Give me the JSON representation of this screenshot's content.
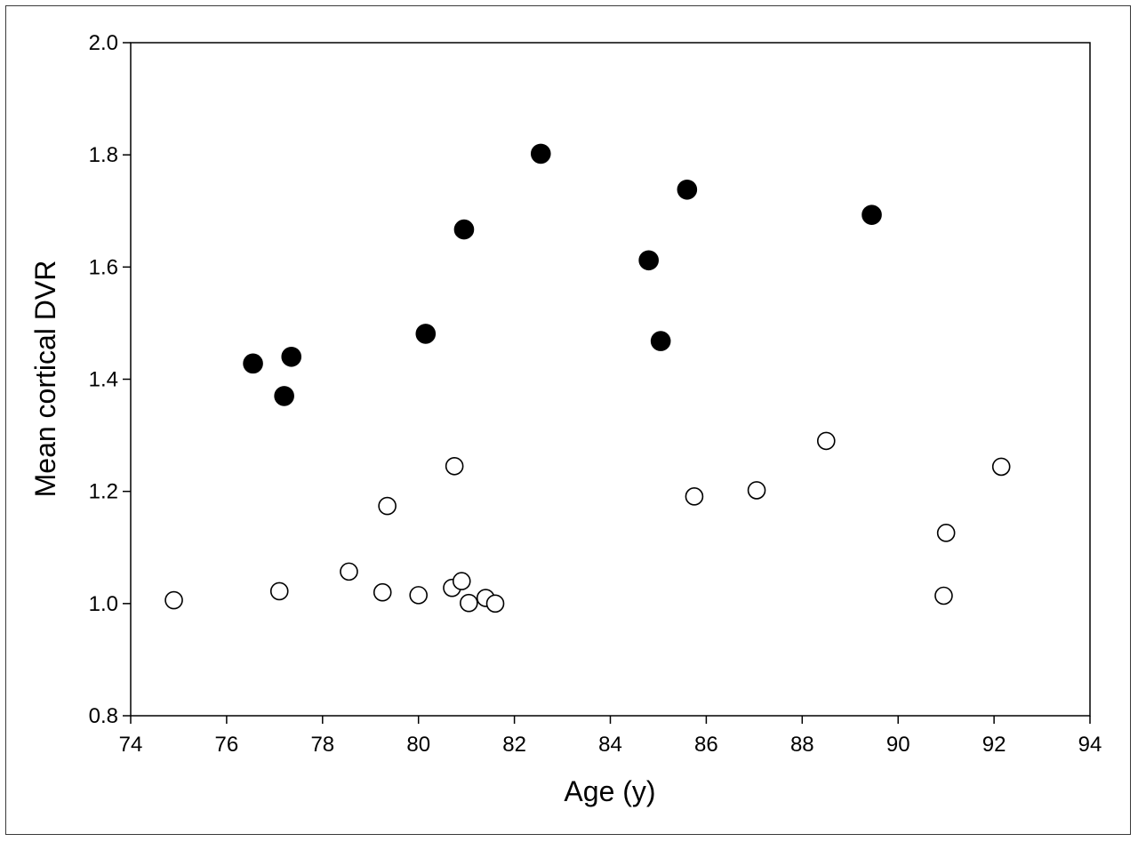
{
  "chart_data": {
    "type": "scatter",
    "title": "",
    "xlabel": "Age (y)",
    "ylabel": "Mean cortical DVR",
    "xlim": [
      74,
      94
    ],
    "ylim": [
      0.8,
      2.0
    ],
    "xticks": [
      "74",
      "76",
      "78",
      "80",
      "82",
      "84",
      "86",
      "88",
      "90",
      "92",
      "94"
    ],
    "yticks": [
      "0.8",
      "1.0",
      "1.2",
      "1.4",
      "1.6",
      "1.8",
      "2.0"
    ],
    "grid": false,
    "legend": "none",
    "series": [
      {
        "marker": "filled-circle",
        "color": "#000000",
        "points": [
          {
            "x": 76.55,
            "y": 1.428
          },
          {
            "x": 77.2,
            "y": 1.37
          },
          {
            "x": 77.35,
            "y": 1.44
          },
          {
            "x": 80.15,
            "y": 1.481
          },
          {
            "x": 80.95,
            "y": 1.667
          },
          {
            "x": 82.55,
            "y": 1.802
          },
          {
            "x": 84.8,
            "y": 1.612
          },
          {
            "x": 85.05,
            "y": 1.468
          },
          {
            "x": 85.6,
            "y": 1.738
          },
          {
            "x": 89.45,
            "y": 1.693
          }
        ]
      },
      {
        "marker": "open-circle",
        "color": "#000000",
        "points": [
          {
            "x": 74.9,
            "y": 1.006
          },
          {
            "x": 77.1,
            "y": 1.022
          },
          {
            "x": 78.55,
            "y": 1.057
          },
          {
            "x": 79.25,
            "y": 1.02
          },
          {
            "x": 79.35,
            "y": 1.174
          },
          {
            "x": 80.0,
            "y": 1.015
          },
          {
            "x": 80.7,
            "y": 1.028
          },
          {
            "x": 80.75,
            "y": 1.245
          },
          {
            "x": 80.9,
            "y": 1.04
          },
          {
            "x": 81.05,
            "y": 1.001
          },
          {
            "x": 81.4,
            "y": 1.01
          },
          {
            "x": 81.6,
            "y": 1.0
          },
          {
            "x": 85.75,
            "y": 1.191
          },
          {
            "x": 87.05,
            "y": 1.202
          },
          {
            "x": 88.5,
            "y": 1.29
          },
          {
            "x": 90.95,
            "y": 1.014
          },
          {
            "x": 91.0,
            "y": 1.126
          },
          {
            "x": 92.15,
            "y": 1.244
          }
        ]
      }
    ]
  }
}
